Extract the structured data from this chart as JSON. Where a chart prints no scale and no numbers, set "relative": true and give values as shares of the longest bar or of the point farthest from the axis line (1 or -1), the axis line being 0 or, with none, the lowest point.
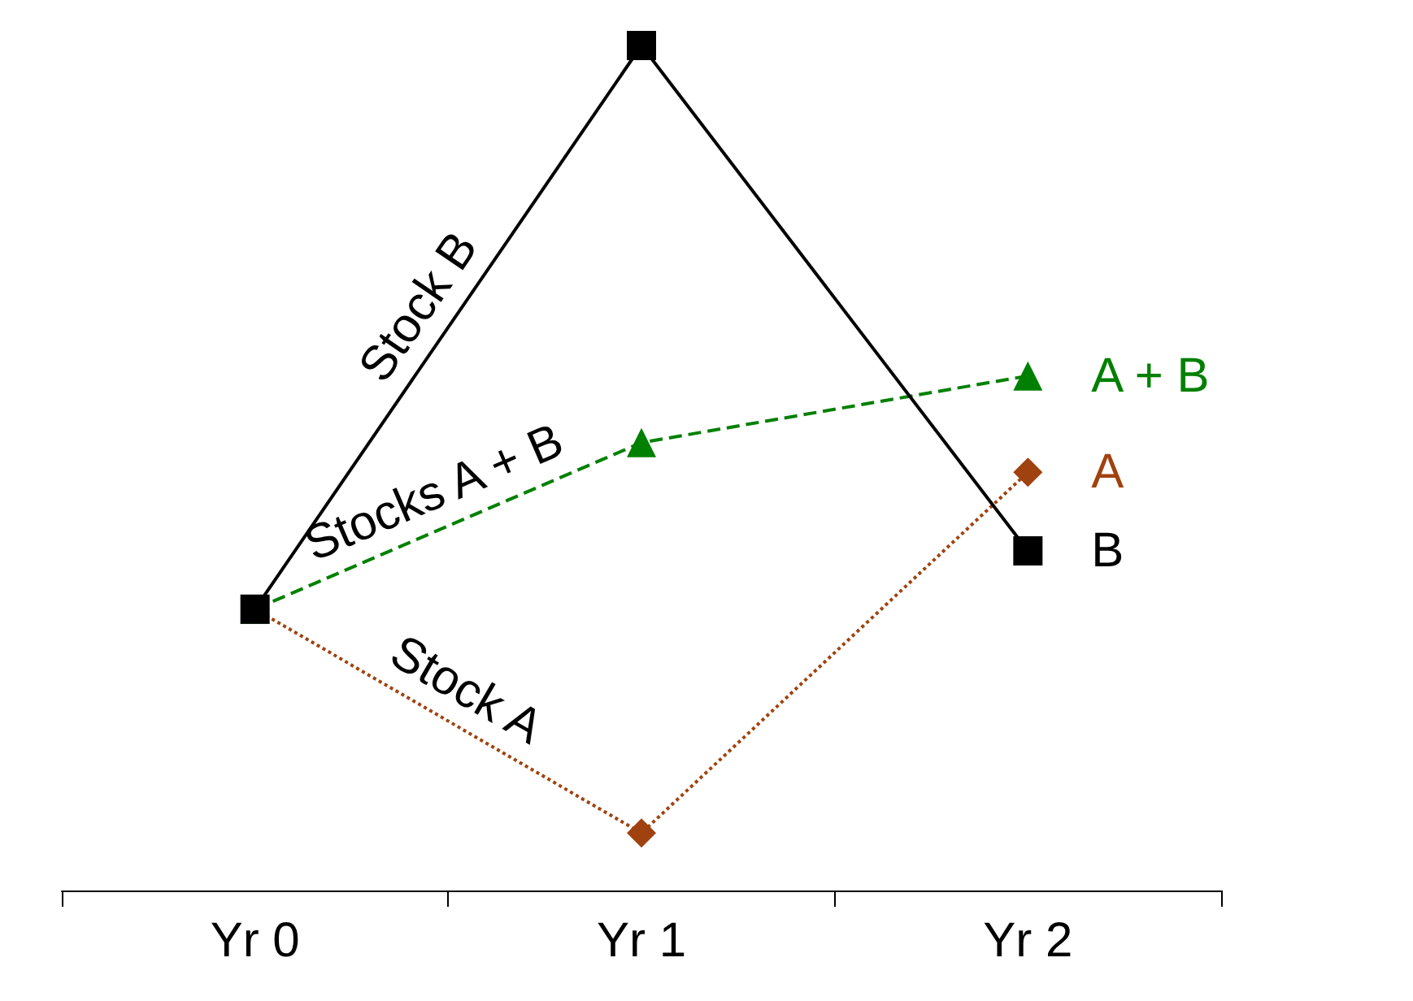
{
  "chart_data": {
    "type": "line",
    "relative": true,
    "categories": [
      "Yr 0",
      "Yr 1",
      "Yr 2"
    ],
    "grid": false,
    "legend": false,
    "series": [
      {
        "name": "B",
        "color": "#000000",
        "values": [
          0.333,
          1,
          0.402
        ],
        "marker": "square",
        "line_style": "solid"
      },
      {
        "name": "A + B",
        "color": "#008000",
        "values": [
          0.333,
          0.53,
          0.609
        ],
        "marker": "triangle",
        "line_style": "dashed"
      },
      {
        "name": "A",
        "color": "#a0420f",
        "values": [
          0.333,
          0.068,
          0.495
        ],
        "marker": "diamond",
        "line_style": "dotted"
      }
    ],
    "annotations": [
      "Stock B",
      "Stocks A + B",
      "Stock A"
    ]
  }
}
